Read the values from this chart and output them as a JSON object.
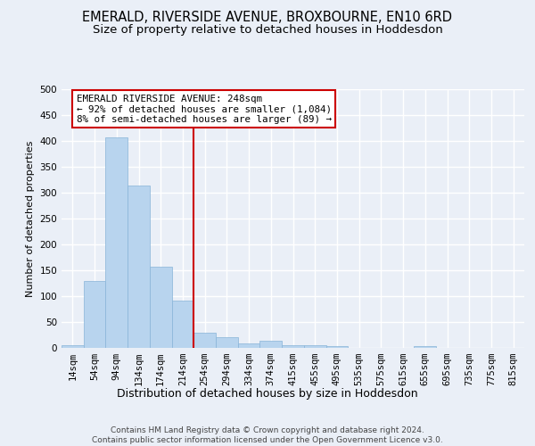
{
  "title": "EMERALD, RIVERSIDE AVENUE, BROXBOURNE, EN10 6RD",
  "subtitle": "Size of property relative to detached houses in Hoddesdon",
  "xlabel": "Distribution of detached houses by size in Hoddesdon",
  "ylabel": "Number of detached properties",
  "footer_line1": "Contains HM Land Registry data © Crown copyright and database right 2024.",
  "footer_line2": "Contains public sector information licensed under the Open Government Licence v3.0.",
  "bar_labels": [
    "14sqm",
    "54sqm",
    "94sqm",
    "134sqm",
    "174sqm",
    "214sqm",
    "254sqm",
    "294sqm",
    "334sqm",
    "374sqm",
    "415sqm",
    "455sqm",
    "495sqm",
    "535sqm",
    "575sqm",
    "615sqm",
    "655sqm",
    "695sqm",
    "735sqm",
    "775sqm",
    "815sqm"
  ],
  "bar_values": [
    6,
    130,
    407,
    313,
    157,
    92,
    30,
    20,
    9,
    14,
    5,
    6,
    4,
    0,
    0,
    0,
    4,
    0,
    0,
    0,
    0
  ],
  "bar_color": "#b8d4ee",
  "bar_edge_color": "#88b4d8",
  "vline_color": "#cc0000",
  "vline_x": 5.5,
  "annotation_line1": "EMERALD RIVERSIDE AVENUE: 248sqm",
  "annotation_line2": "← 92% of detached houses are smaller (1,084)",
  "annotation_line3": "8% of semi-detached houses are larger (89) →",
  "annotation_box_facecolor": "#ffffff",
  "annotation_border_color": "#cc0000",
  "ylim": [
    0,
    500
  ],
  "yticks": [
    0,
    50,
    100,
    150,
    200,
    250,
    300,
    350,
    400,
    450,
    500
  ],
  "bg_color": "#eaeff7",
  "grid_color": "#ffffff",
  "title_fontsize": 10.5,
  "subtitle_fontsize": 9.5,
  "footer_fontsize": 6.5,
  "ylabel_fontsize": 8,
  "xlabel_fontsize": 9,
  "tick_fontsize": 7.5,
  "annotation_fontsize": 7.8
}
